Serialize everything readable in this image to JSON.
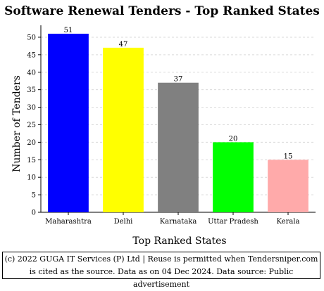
{
  "chart_data": {
    "type": "bar",
    "title": "Software Renewal Tenders - Top Ranked States",
    "xlabel": "Top Ranked States",
    "ylabel": "Number of Tenders",
    "categories": [
      "Maharashtra",
      "Delhi",
      "Karnataka",
      "Uttar Pradesh",
      "Kerala"
    ],
    "values": [
      51,
      47,
      37,
      20,
      15
    ],
    "colors": [
      "#0000ff",
      "#ffff00",
      "#808080",
      "#00ff00",
      "#ffaaaa"
    ],
    "ylim": [
      0,
      53
    ],
    "yticks": [
      0,
      5,
      10,
      15,
      20,
      25,
      30,
      35,
      40,
      45,
      50
    ],
    "grid": true,
    "data_labels": true
  },
  "footer": {
    "text": "(c) 2022 GUGA IT Services (P) Ltd | Reuse is permitted when Tendersniper.com is cited as the source. Data as on 04 Dec 2024. Data source: Public advertisement"
  }
}
